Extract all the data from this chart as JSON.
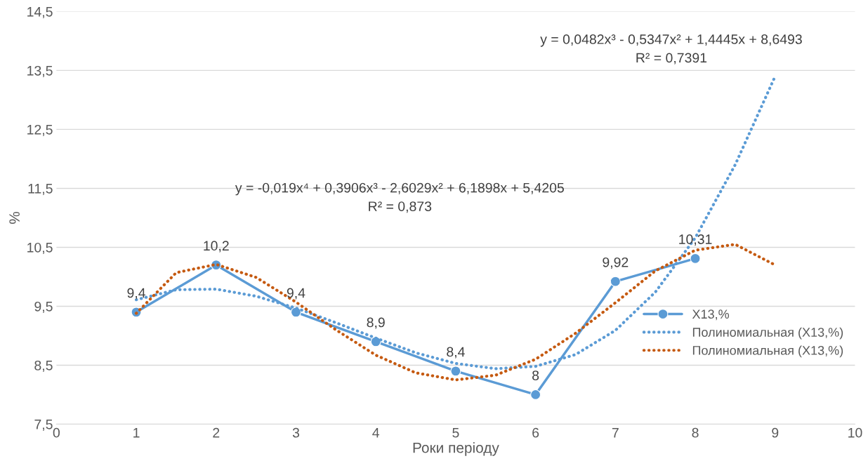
{
  "chart_data": {
    "type": "line",
    "xlabel": "Роки періоду",
    "ylabel": "%",
    "xlim": [
      0,
      10
    ],
    "xticks": [
      0,
      1,
      2,
      3,
      4,
      5,
      6,
      7,
      8,
      9,
      10
    ],
    "ylim": [
      7.5,
      14.5
    ],
    "yticks": [
      {
        "value": 7.5,
        "label": "7,5"
      },
      {
        "value": 8.5,
        "label": "8,5"
      },
      {
        "value": 9.5,
        "label": "9,5"
      },
      {
        "value": 10.5,
        "label": "10,5"
      },
      {
        "value": 11.5,
        "label": "11,5"
      },
      {
        "value": 12.5,
        "label": "12,5"
      },
      {
        "value": 13.5,
        "label": "13,5"
      },
      {
        "value": 14.5,
        "label": "14,5"
      }
    ],
    "grid": "y",
    "legend": "right",
    "series": [
      {
        "name": "X13,%",
        "color": "#5b9bd5",
        "marker": "circle",
        "line_style": "solid",
        "x": [
          1,
          2,
          3,
          4,
          5,
          6,
          7,
          8
        ],
        "values": [
          9.4,
          10.2,
          9.4,
          8.9,
          8.4,
          8,
          9.92,
          10.31
        ],
        "value_labels": [
          "9,4",
          "10,2",
          "9,4",
          "8,9",
          "8,4",
          "8",
          "9,92",
          "10,31"
        ]
      },
      {
        "name": "Полиномиальная (X13,%)",
        "color": "#5b9bd5",
        "marker": "none",
        "line_style": "dotted",
        "x": [
          1,
          1.5,
          2,
          2.5,
          3,
          3.5,
          4,
          4.5,
          5,
          5.5,
          6,
          6.5,
          7,
          7.5,
          8,
          8.5,
          9
        ],
        "values": [
          9.61,
          9.78,
          9.79,
          9.67,
          9.47,
          9.22,
          8.96,
          8.71,
          8.53,
          8.44,
          8.48,
          8.68,
          9.09,
          9.74,
          10.66,
          11.9,
          13.4
        ]
      },
      {
        "name": "Полиномиальная (X13,%)",
        "color": "#c55a11",
        "marker": "none",
        "line_style": "dotted",
        "x": [
          1,
          1.5,
          2,
          2.5,
          3,
          3.5,
          4,
          4.5,
          5,
          5.5,
          6,
          6.5,
          7,
          7.5,
          8,
          8.5,
          9
        ],
        "values": [
          9.38,
          10.07,
          10.21,
          9.99,
          9.57,
          9.1,
          8.67,
          8.37,
          8.25,
          8.33,
          8.6,
          9.04,
          9.56,
          10.1,
          10.45,
          10.55,
          10.2
        ]
      }
    ],
    "annotations": [
      "y = 0,0482x³ - 0,5347x² + 1,4445x + 8,6493",
      "R² = 0,7391",
      "y = -0,019x⁴ + 0,3906x³ - 2,6029x² + 6,1898x + 5,4205",
      "R² = 0,873"
    ]
  }
}
